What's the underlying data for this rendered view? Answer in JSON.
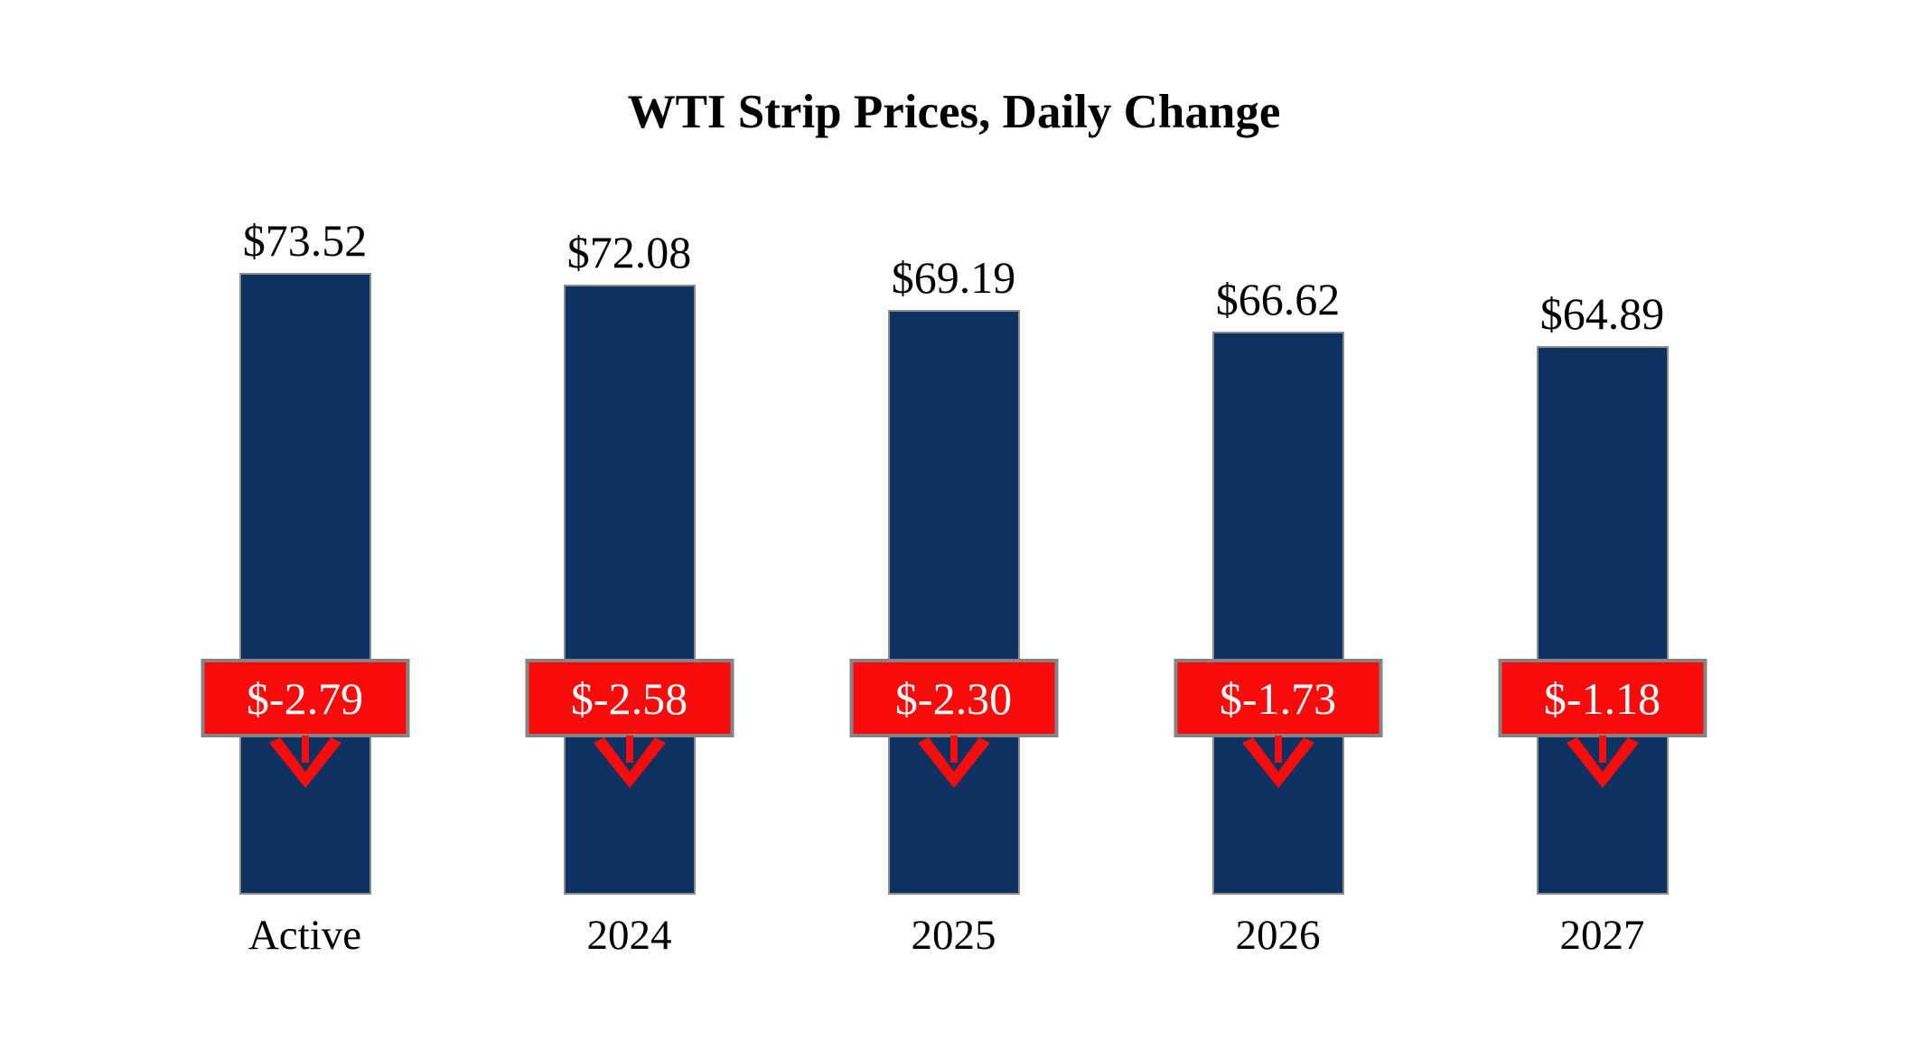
{
  "chart_data": {
    "type": "bar",
    "title": "WTI Strip Prices, Daily Change",
    "categories": [
      "Active",
      "2024",
      "2025",
      "2026",
      "2027"
    ],
    "series": [
      {
        "name": "Strip Price",
        "values": [
          73.52,
          72.08,
          69.19,
          66.62,
          64.89
        ]
      },
      {
        "name": "Daily Change",
        "values": [
          -2.79,
          -2.58,
          -2.3,
          -1.73,
          -1.18
        ]
      }
    ],
    "ylim": [
      0,
      80
    ],
    "grid": false,
    "legend": "none",
    "columns": [
      {
        "category": "Active",
        "price_label": "$73.52",
        "price": 73.52,
        "change_label": "$-2.79",
        "change": -2.79
      },
      {
        "category": "2024",
        "price_label": "$72.08",
        "price": 72.08,
        "change_label": "$-2.58",
        "change": -2.58
      },
      {
        "category": "2025",
        "price_label": "$69.19",
        "price": 69.19,
        "change_label": "$-2.30",
        "change": -2.3
      },
      {
        "category": "2026",
        "price_label": "$66.62",
        "price": 66.62,
        "change_label": "$-1.73",
        "change": -1.73
      },
      {
        "category": "2027",
        "price_label": "$64.89",
        "price": 64.89,
        "change_label": "$-1.18",
        "change": -1.18
      }
    ]
  },
  "colors": {
    "bar_fill": "#0D3261",
    "bar_border": "#8C8C8C",
    "change_fill": "#FA0B0B",
    "change_border": "#848484",
    "change_text": "#FFFFFF",
    "arrow": "#FA0B0B",
    "title_text": "#000000",
    "background": "#FFFFFF"
  }
}
